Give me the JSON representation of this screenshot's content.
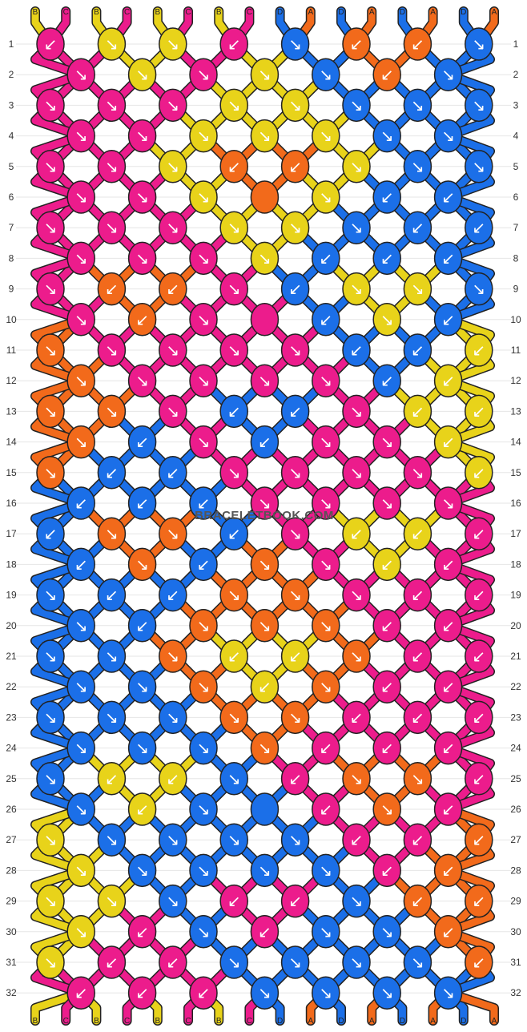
{
  "watermark": "BRACELETBOOK.COM",
  "colors": {
    "A": "#f26a1b",
    "B": "#e8d31a",
    "C": "#ec1c8c",
    "D": "#1b6fe8"
  },
  "strings_top": [
    "B",
    "C",
    "B",
    "C",
    "B",
    "C",
    "B",
    "C",
    "D",
    "A",
    "D",
    "A",
    "D",
    "A",
    "D",
    "A"
  ],
  "strings_bottom": [
    "B",
    "C",
    "B",
    "C",
    "B",
    "C",
    "B",
    "C",
    "D",
    "A",
    "D",
    "A",
    "D",
    "A",
    "D",
    "A"
  ],
  "row_labels": [
    "1",
    "2",
    "3",
    "4",
    "5",
    "6",
    "7",
    "8",
    "9",
    "10",
    "11",
    "12",
    "13",
    "14",
    "15",
    "16",
    "17",
    "18",
    "19",
    "20",
    "21",
    "22",
    "23",
    "24",
    "25",
    "26",
    "27",
    "28",
    "29",
    "30",
    "31",
    "32"
  ],
  "knots": [
    [
      "C↙",
      "B↘",
      "B↘",
      "C↙",
      "D↘",
      "A↙",
      "A↙",
      "D↘"
    ],
    [
      "C↘",
      "B↘",
      "C↘",
      "B↘",
      "D↘",
      "A↙",
      "D↘"
    ],
    [
      "C↘",
      "C↘",
      "C↘",
      "B↘",
      "B↘",
      "D↘",
      "D↘",
      "D↘"
    ],
    [
      "C↘",
      "C↘",
      "B↘",
      "B↘",
      "B↘",
      "D↘",
      "D↘"
    ],
    [
      "C↘",
      "C↘",
      "B↘",
      "A↙",
      "A↙",
      "B↘",
      "D↘",
      "D↘"
    ],
    [
      "C↘",
      "C↘",
      "B↘",
      "A",
      "B↘",
      "D↙",
      "D↙"
    ],
    [
      "C↘",
      "C↘",
      "C↘",
      "B↘",
      "B↘",
      "D↘",
      "D↙",
      "D↙"
    ],
    [
      "C↘",
      "C↘",
      "C↘",
      "B↘",
      "D↙",
      "D↙",
      "D↙"
    ],
    [
      "C↘",
      "A↙",
      "A↙",
      "C↘",
      "D↙",
      "B↘",
      "B↘",
      "D↘"
    ],
    [
      "C↘",
      "A↙",
      "C↘",
      "C",
      "D↙",
      "B↘",
      "D↙"
    ],
    [
      "A↘",
      "C↘",
      "C↘",
      "C↘",
      "C↘",
      "D↙",
      "D↙",
      "B↙"
    ],
    [
      "A↘",
      "C↘",
      "C↘",
      "C↘",
      "C↘",
      "D↙",
      "B↙"
    ],
    [
      "A↘",
      "A↘",
      "C↘",
      "D↙",
      "D↙",
      "C↘",
      "B↙",
      "B↙"
    ],
    [
      "A↘",
      "D↙",
      "C↘",
      "D↙",
      "C↘",
      "C↘",
      "B↙"
    ],
    [
      "A↘",
      "D↙",
      "D↙",
      "C↘",
      "C↘",
      "C↘",
      "C↘",
      "B↙"
    ],
    [
      "D↙",
      "D↙",
      "D↙",
      "C↘",
      "C↘",
      "C↘",
      "C↘"
    ],
    [
      "D↙",
      "A↘",
      "A↘",
      "D↙",
      "C↘",
      "B↙",
      "B↙",
      "C↙"
    ],
    [
      "D↙",
      "A↘",
      "D↙",
      "A↘",
      "C↘",
      "B↙",
      "C↙"
    ],
    [
      "D↘",
      "D↙",
      "D↙",
      "A↘",
      "A↘",
      "C↘",
      "C↙",
      "C↙"
    ],
    [
      "D↘",
      "D↙",
      "A↘",
      "A↘",
      "A↘",
      "C↙",
      "C↙"
    ],
    [
      "D↘",
      "D↘",
      "A↘",
      "B↙",
      "B↙",
      "A↘",
      "C↙",
      "C↙"
    ],
    [
      "D↘",
      "D↘",
      "A↘",
      "B↙",
      "A↘",
      "C↙",
      "C↙"
    ],
    [
      "D↘",
      "D↘",
      "D↘",
      "A↘",
      "A↘",
      "C↙",
      "C↙",
      "C↙"
    ],
    [
      "D↘",
      "D↘",
      "D↘",
      "A↘",
      "C↙",
      "C↙",
      "C↙"
    ],
    [
      "D↘",
      "B↙",
      "B↙",
      "D↘",
      "C↙",
      "A↘",
      "A↘",
      "C↙"
    ],
    [
      "D↘",
      "B↙",
      "D↘",
      "D",
      "C↙",
      "A↘",
      "C↙"
    ],
    [
      "B↘",
      "D↘",
      "D↘",
      "D↘",
      "D↘",
      "C↙",
      "C↙",
      "A↙"
    ],
    [
      "B↘",
      "D↘",
      "D↘",
      "D↘",
      "D↘",
      "C↙",
      "A↙"
    ],
    [
      "B↘",
      "B↘",
      "D↘",
      "C↙",
      "C↙",
      "D↘",
      "A↙",
      "A↙"
    ],
    [
      "B↘",
      "C↙",
      "D↘",
      "C↙",
      "D↘",
      "D↘",
      "A↙"
    ],
    [
      "B↘",
      "C↙",
      "C↙",
      "D↘",
      "D↘",
      "D↘",
      "D↘",
      "A↙"
    ],
    [
      "C↙",
      "C↙",
      "C↙",
      "D↘",
      "D↘",
      "D↘",
      "D↘"
    ]
  ]
}
